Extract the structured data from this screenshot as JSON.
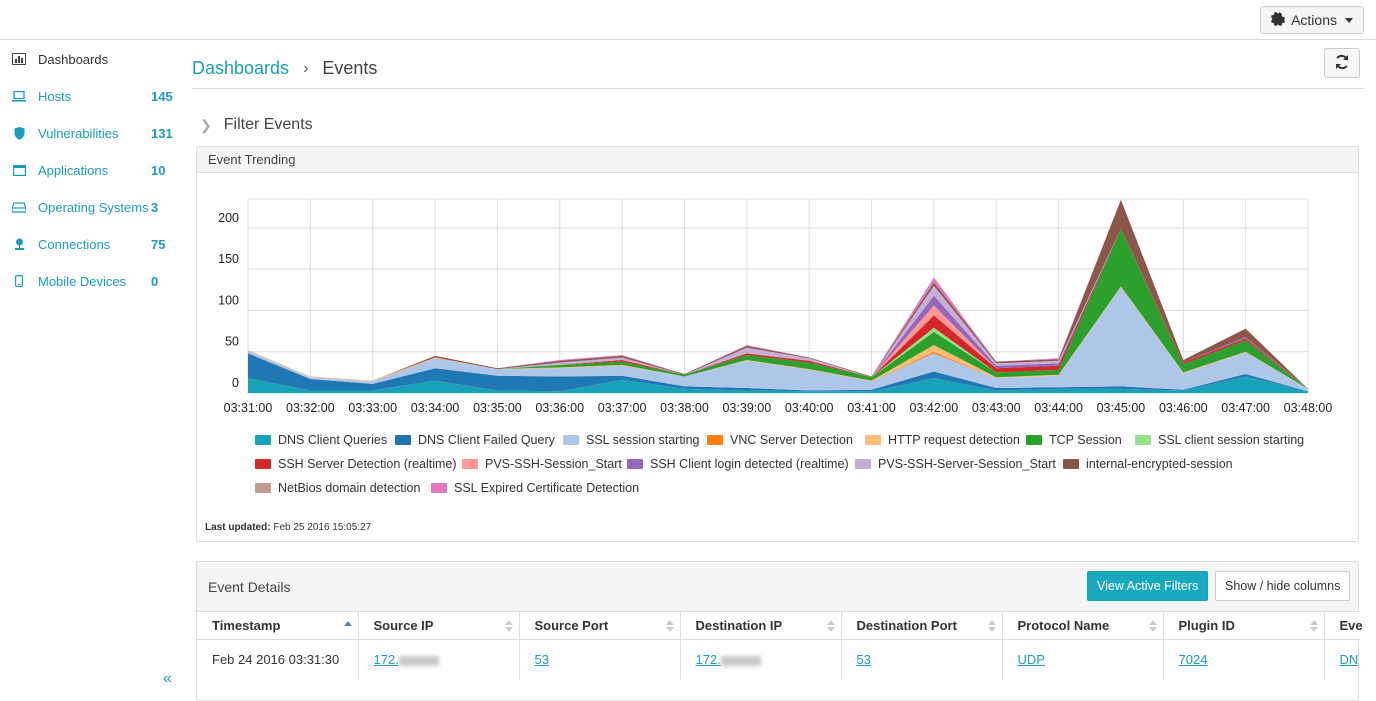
{
  "topbar": {
    "actions_label": "Actions"
  },
  "sidebar": {
    "items": [
      {
        "label": "Dashboards",
        "count": ""
      },
      {
        "label": "Hosts",
        "count": "145"
      },
      {
        "label": "Vulnerabilities",
        "count": "131"
      },
      {
        "label": "Applications",
        "count": "10"
      },
      {
        "label": "Operating Systems",
        "count": "3"
      },
      {
        "label": "Connections",
        "count": "75"
      },
      {
        "label": "Mobile Devices",
        "count": "0"
      }
    ],
    "collapse_label": "«"
  },
  "breadcrumb": {
    "root": "Dashboards",
    "separator": "›",
    "current": "Events"
  },
  "filter": {
    "label": "Filter Events"
  },
  "trend_panel": {
    "title": "Event Trending",
    "last_updated_label": "Last updated:",
    "last_updated_value": "Feb 25 2016 15:05:27"
  },
  "chart_data": {
    "type": "area",
    "stacked": true,
    "x": [
      "03:31:00",
      "03:32:00",
      "03:33:00",
      "03:34:00",
      "03:35:00",
      "03:36:00",
      "03:37:00",
      "03:38:00",
      "03:39:00",
      "03:40:00",
      "03:41:00",
      "03:42:00",
      "03:43:00",
      "03:44:00",
      "03:45:00",
      "03:46:00",
      "03:47:00",
      "03:48:00"
    ],
    "ylim": [
      0,
      235
    ],
    "yticks": [
      0,
      50,
      100,
      150,
      200
    ],
    "grid": true,
    "legend_position": "bottom",
    "series": [
      {
        "name": "DNS Client Queries",
        "color": "#17a2b8",
        "values": [
          18,
          3,
          3,
          15,
          3,
          2,
          16,
          5,
          3,
          2,
          2,
          18,
          3,
          5,
          5,
          3,
          20,
          2
        ]
      },
      {
        "name": "DNS Client Failed Query",
        "color": "#1f78b4",
        "values": [
          30,
          14,
          8,
          15,
          18,
          18,
          5,
          3,
          3,
          1,
          2,
          8,
          3,
          2,
          3,
          1,
          3,
          0
        ]
      },
      {
        "name": "SSL session starting",
        "color": "#aec7e8",
        "values": [
          3,
          2,
          3,
          12,
          8,
          10,
          12,
          12,
          33,
          25,
          10,
          22,
          12,
          14,
          120,
          20,
          26,
          3
        ]
      },
      {
        "name": "VNC Server Detection",
        "color": "#ff7f0e",
        "values": [
          0,
          0,
          0,
          0,
          0,
          0,
          0,
          0,
          0,
          0,
          0,
          2,
          0,
          0,
          0,
          0,
          0,
          0
        ]
      },
      {
        "name": "HTTP request detection",
        "color": "#ffbb78",
        "values": [
          1,
          1,
          1,
          1,
          0,
          1,
          1,
          0,
          1,
          1,
          1,
          8,
          1,
          1,
          1,
          1,
          1,
          0
        ]
      },
      {
        "name": "TCP Session",
        "color": "#2ca02c",
        "values": [
          0,
          0,
          0,
          0,
          0,
          3,
          4,
          2,
          6,
          8,
          4,
          16,
          6,
          6,
          70,
          10,
          14,
          0
        ]
      },
      {
        "name": "SSL client session starting",
        "color": "#98df8a",
        "values": [
          0,
          0,
          0,
          0,
          0,
          0,
          0,
          0,
          0,
          0,
          0,
          5,
          0,
          0,
          0,
          0,
          0,
          0
        ]
      },
      {
        "name": "SSH Server Detection (realtime)",
        "color": "#d62728",
        "values": [
          0,
          0,
          0,
          0,
          0,
          0,
          2,
          0,
          2,
          2,
          0,
          15,
          5,
          5,
          0,
          2,
          2,
          0
        ]
      },
      {
        "name": "PVS-SSH-Session_Start",
        "color": "#ff9896",
        "values": [
          0,
          0,
          0,
          0,
          0,
          0,
          0,
          0,
          0,
          0,
          0,
          12,
          0,
          0,
          0,
          0,
          0,
          0
        ]
      },
      {
        "name": "SSH Client login detected (realtime)",
        "color": "#9467bd",
        "values": [
          0,
          0,
          0,
          0,
          0,
          0,
          0,
          0,
          0,
          0,
          0,
          12,
          3,
          3,
          0,
          0,
          2,
          0
        ]
      },
      {
        "name": "PVS-SSH-Server-Session_Start",
        "color": "#c5b0d5",
        "values": [
          0,
          0,
          0,
          0,
          0,
          3,
          3,
          0,
          7,
          3,
          0,
          12,
          3,
          3,
          0,
          0,
          0,
          0
        ]
      },
      {
        "name": "internal-encrypted-session",
        "color": "#8c564b",
        "values": [
          0,
          0,
          0,
          2,
          1,
          2,
          2,
          1,
          2,
          1,
          1,
          4,
          2,
          2,
          35,
          3,
          10,
          0
        ]
      },
      {
        "name": "NetBios domain detection",
        "color": "#c49c94",
        "values": [
          0,
          0,
          0,
          0,
          0,
          0,
          0,
          0,
          0,
          0,
          0,
          0,
          0,
          0,
          0,
          0,
          0,
          0
        ]
      },
      {
        "name": "SSL Expired Certificate Detection",
        "color": "#e377c2",
        "values": [
          0,
          0,
          0,
          0,
          0,
          1,
          1,
          0,
          1,
          0,
          0,
          6,
          0,
          1,
          0,
          0,
          0,
          0
        ]
      }
    ]
  },
  "details_panel": {
    "title": "Event Details",
    "view_filters_label": "View Active Filters",
    "show_hide_label": "Show / hide columns",
    "columns": [
      "Timestamp",
      "Source IP",
      "Source Port",
      "Destination IP",
      "Destination Port",
      "Protocol Name",
      "Plugin ID",
      "Eve"
    ],
    "rows": [
      {
        "timestamp": "Feb 24 2016 03:31:30",
        "source_ip": "172.",
        "source_port": "53",
        "destination_ip": "172.",
        "destination_port": "53",
        "protocol": "UDP",
        "plugin_id": "7024",
        "event": "DN"
      }
    ]
  },
  "colors": {
    "accent": "#1a9eb8",
    "button_primary": "#1aa8bd"
  }
}
